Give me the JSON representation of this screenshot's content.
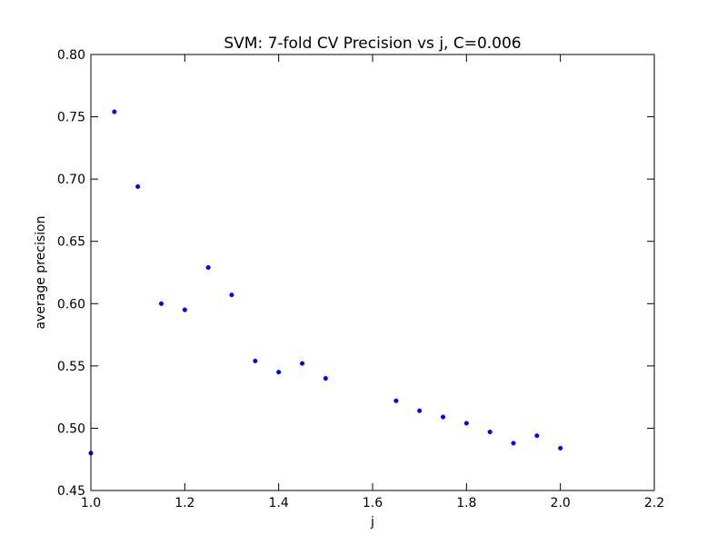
{
  "chart_data": {
    "type": "scatter",
    "title": "SVM: 7-fold CV Precision vs j, C=0.006",
    "xlabel": "j",
    "ylabel": "average precision",
    "xlim": [
      1.0,
      2.2
    ],
    "ylim": [
      0.45,
      0.8
    ],
    "xticks": [
      "1.0",
      "1.2",
      "1.4",
      "1.6",
      "1.8",
      "2.0",
      "2.2"
    ],
    "yticks": [
      "0.45",
      "0.50",
      "0.55",
      "0.60",
      "0.65",
      "0.70",
      "0.75",
      "0.80"
    ],
    "grid": false,
    "legend": "none",
    "marker_color": "#0000ff",
    "x": [
      1.0,
      1.05,
      1.1,
      1.15,
      1.2,
      1.25,
      1.3,
      1.35,
      1.4,
      1.45,
      1.5,
      1.65,
      1.7,
      1.75,
      1.8,
      1.85,
      1.9,
      1.95,
      2.0
    ],
    "y": [
      0.48,
      0.754,
      0.694,
      0.6,
      0.595,
      0.629,
      0.607,
      0.554,
      0.545,
      0.552,
      0.54,
      0.522,
      0.514,
      0.509,
      0.504,
      0.497,
      0.488,
      0.494,
      0.484
    ]
  }
}
